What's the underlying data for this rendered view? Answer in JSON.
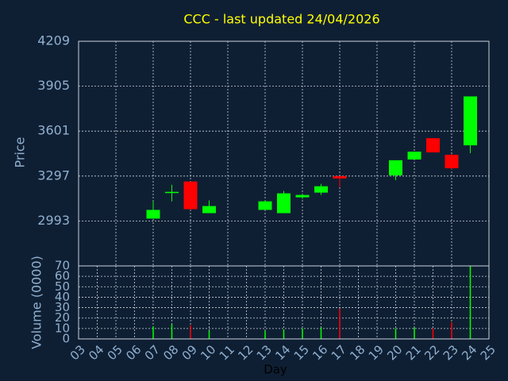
{
  "chart_data": [
    {
      "type": "candlestick",
      "title": "CCC - last updated 24/04/2026",
      "ylabel": "Price",
      "x": [
        7,
        8,
        9,
        10,
        13,
        14,
        15,
        16,
        17,
        20,
        21,
        22,
        23,
        24
      ],
      "open": [
        3009,
        3190,
        3260,
        3046,
        3068,
        3046,
        3153,
        3185,
        3297,
        3302,
        3409,
        3553,
        3441,
        3505
      ],
      "high": [
        3126,
        3238,
        3260,
        3132,
        3130,
        3196,
        3174,
        3244,
        3297,
        3404,
        3462,
        3553,
        3446,
        3836
      ],
      "low": [
        3009,
        3126,
        3068,
        3046,
        3068,
        3046,
        3142,
        3169,
        3222,
        3270,
        3409,
        3457,
        3340,
        3452
      ],
      "close": [
        3068,
        3190,
        3073,
        3094,
        3126,
        3180,
        3169,
        3228,
        3281,
        3404,
        3462,
        3457,
        3350,
        3836
      ],
      "up_color": "#00ff00",
      "down_color": "#ff0000",
      "xlim": [
        3,
        25
      ],
      "ylim": [
        2689,
        4209
      ],
      "yticks": [
        2993,
        3297,
        3601,
        3905,
        4209
      ],
      "grid": true
    },
    {
      "type": "bar",
      "ylabel": "Volume (0000)",
      "xlabel": "Day",
      "x": [
        7,
        8,
        9,
        10,
        13,
        14,
        15,
        16,
        17,
        20,
        21,
        22,
        23,
        24
      ],
      "values": [
        12,
        14,
        13,
        8,
        8,
        9,
        10,
        11,
        29,
        10,
        11,
        10,
        16,
        70
      ],
      "xlim": [
        3,
        25
      ],
      "xticks": [
        {
          "value": 3,
          "label": "03"
        },
        {
          "value": 4,
          "label": "04"
        },
        {
          "value": 5,
          "label": "05"
        },
        {
          "value": 6,
          "label": "06"
        },
        {
          "value": 7,
          "label": "07"
        },
        {
          "value": 8,
          "label": "08"
        },
        {
          "value": 9,
          "label": "09"
        },
        10,
        11,
        12,
        13,
        14,
        15,
        16,
        17,
        18,
        19,
        20,
        21,
        22,
        23,
        24,
        25
      ],
      "ylim": [
        0,
        70
      ],
      "yticks": [
        0,
        10,
        20,
        30,
        40,
        50,
        60,
        70
      ],
      "grid": true
    }
  ]
}
